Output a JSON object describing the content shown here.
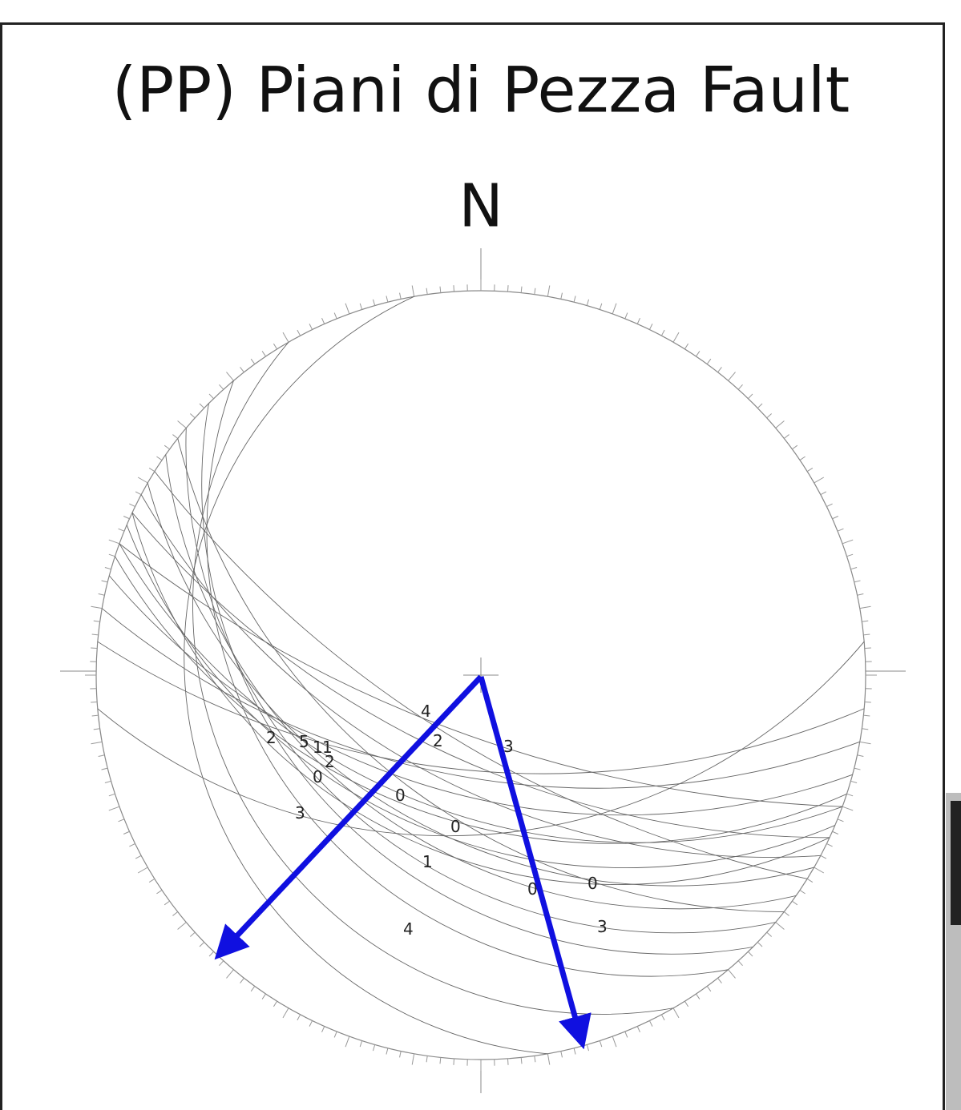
{
  "header": {
    "title": "(PP) Piani di Pezza Fault",
    "north": "N"
  },
  "labels": [
    "4",
    "2",
    "3",
    "2",
    "5",
    "1",
    "1",
    "2",
    "0",
    "3",
    "0",
    "0",
    "1",
    "0",
    "3",
    "4",
    "0"
  ]
}
